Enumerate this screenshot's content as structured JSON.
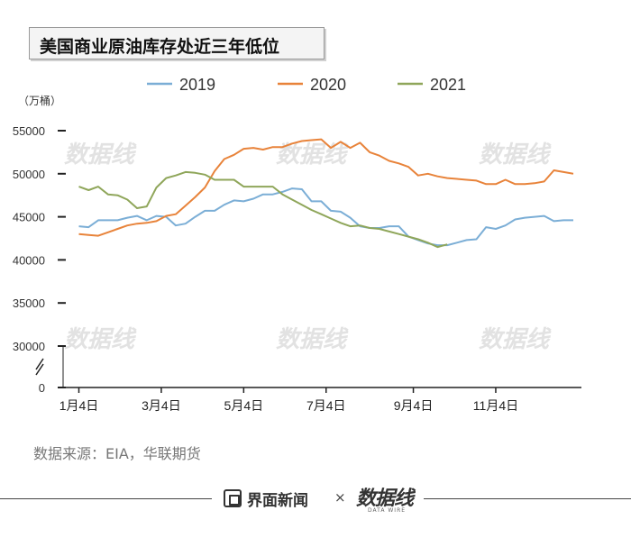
{
  "title": "美国商业原油库存处近三年低位",
  "source": "数据来源：EIA，华联期货",
  "footer": {
    "brand": "界面新闻",
    "separator": "×",
    "partner": "数据线",
    "partner_sub": "DATA WIRE"
  },
  "colors": {
    "2019": "#7baed6",
    "2020": "#e8833a",
    "2021": "#8fa65a",
    "axis": "#222222",
    "watermark": "#e2e2e2"
  },
  "chart_data": {
    "type": "line",
    "ylabel": "（万桶）",
    "ylim": [
      0,
      55000
    ],
    "axis_break": "y between 0 and 30000",
    "yticks": [
      "55000",
      "50000",
      "45000",
      "40000",
      "35000",
      "30000",
      "0"
    ],
    "xticks": [
      "1月4日",
      "3月4日",
      "5月4日",
      "7月4日",
      "9月4日",
      "11月4日"
    ],
    "x_week_range": [
      1,
      52
    ],
    "legend_position": "top",
    "series": [
      {
        "name": "2019",
        "color": "#7baed6",
        "values": [
          43900,
          43800,
          44600,
          44600,
          44600,
          44900,
          45100,
          44600,
          45100,
          45000,
          44000,
          44200,
          45000,
          45700,
          45700,
          46400,
          46900,
          46800,
          47100,
          47600,
          47600,
          47900,
          48300,
          48200,
          46800,
          46800,
          45700,
          45600,
          44900,
          43900,
          43700,
          43700,
          43900,
          43900,
          42700,
          42300,
          41900,
          41700,
          41700,
          42000,
          42300,
          42400,
          43800,
          43600,
          44000,
          44700,
          44900,
          45000,
          45100,
          44500,
          44600,
          44600
        ]
      },
      {
        "name": "2020",
        "color": "#e8833a",
        "values": [
          43000,
          42900,
          42800,
          43200,
          43600,
          44000,
          44200,
          44300,
          44500,
          45100,
          45300,
          46300,
          47300,
          48400,
          50300,
          51700,
          52200,
          52900,
          53000,
          52800,
          53100,
          53100,
          53500,
          53800,
          53900,
          54000,
          53000,
          53700,
          53000,
          53600,
          52500,
          52100,
          51500,
          51200,
          50800,
          49800,
          50000,
          49700,
          49500,
          49400,
          49300,
          49200,
          48800,
          48800,
          49300,
          48800,
          48800,
          48900,
          49100,
          50400,
          50200,
          50000
        ]
      },
      {
        "name": "2021",
        "color": "#8fa65a",
        "values": [
          48500,
          48100,
          48500,
          47600,
          47500,
          47000,
          46000,
          46200,
          48400,
          49500,
          49800,
          50200,
          50100,
          49900,
          49300,
          49300,
          49300,
          48500,
          48500,
          48500,
          48500,
          47600,
          47000,
          46400,
          45800,
          45300,
          44800,
          44300,
          43900,
          44000,
          43700,
          43600,
          43300,
          43000,
          42700,
          42400,
          42000,
          41500,
          41800
        ]
      }
    ]
  }
}
